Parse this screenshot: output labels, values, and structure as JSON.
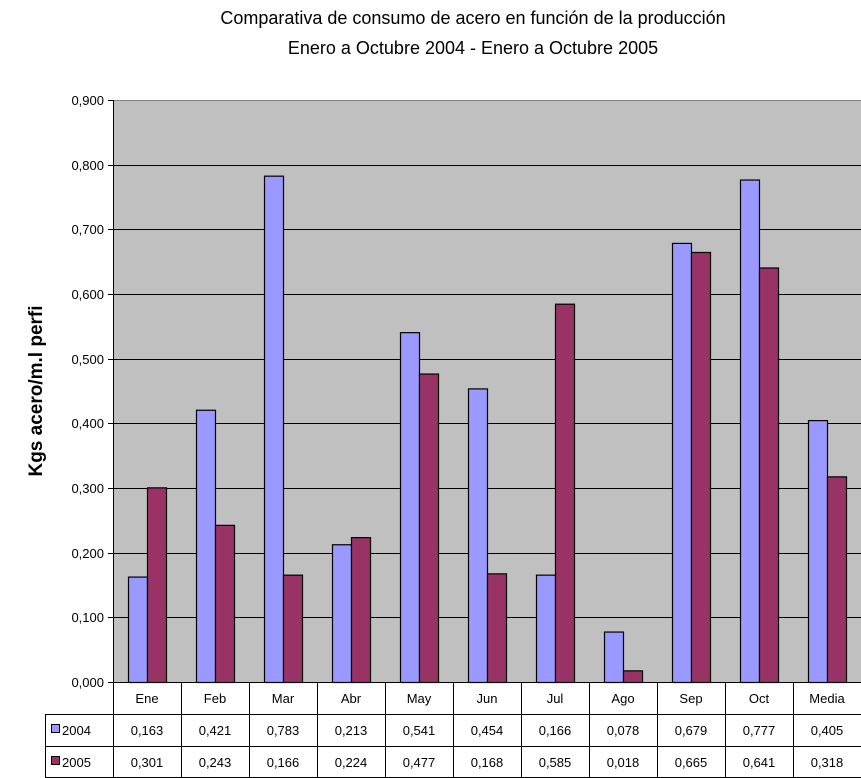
{
  "chart_data": {
    "type": "bar",
    "title": "Comparativa de consumo de acero en función de la producción",
    "subtitle": "Enero a Octubre 2004 - Enero a Octubre 2005",
    "ylabel": "Kgs acero/m.l perfi",
    "xlabel": "",
    "ylim": [
      0,
      0.9
    ],
    "yticks": [
      "0,000",
      "0,100",
      "0,200",
      "0,300",
      "0,400",
      "0,500",
      "0,600",
      "0,700",
      "0,800",
      "0,900"
    ],
    "ytick_values": [
      0,
      0.1,
      0.2,
      0.3,
      0.4,
      0.5,
      0.6,
      0.7,
      0.8,
      0.9
    ],
    "grid": true,
    "legend": "data-table",
    "categories": [
      "Ene",
      "Feb",
      "Mar",
      "Abr",
      "May",
      "Jun",
      "Jul",
      "Ago",
      "Sep",
      "Oct",
      "Media"
    ],
    "series": [
      {
        "name": "2004",
        "color": "#9999ff",
        "values": [
          0.163,
          0.421,
          0.783,
          0.213,
          0.541,
          0.454,
          0.166,
          0.078,
          0.679,
          0.777,
          0.405
        ],
        "labels": [
          "0,163",
          "0,421",
          "0,783",
          "0,213",
          "0,541",
          "0,454",
          "0,166",
          "0,078",
          "0,679",
          "0,777",
          "0,405"
        ]
      },
      {
        "name": "2005",
        "color": "#993366",
        "values": [
          0.301,
          0.243,
          0.166,
          0.224,
          0.477,
          0.168,
          0.585,
          0.018,
          0.665,
          0.641,
          0.318
        ],
        "labels": [
          "0,301",
          "0,243",
          "0,166",
          "0,224",
          "0,477",
          "0,168",
          "0,585",
          "0,018",
          "0,665",
          "0,641",
          "0,318"
        ]
      }
    ],
    "plot_background": "#c0c0c0"
  }
}
